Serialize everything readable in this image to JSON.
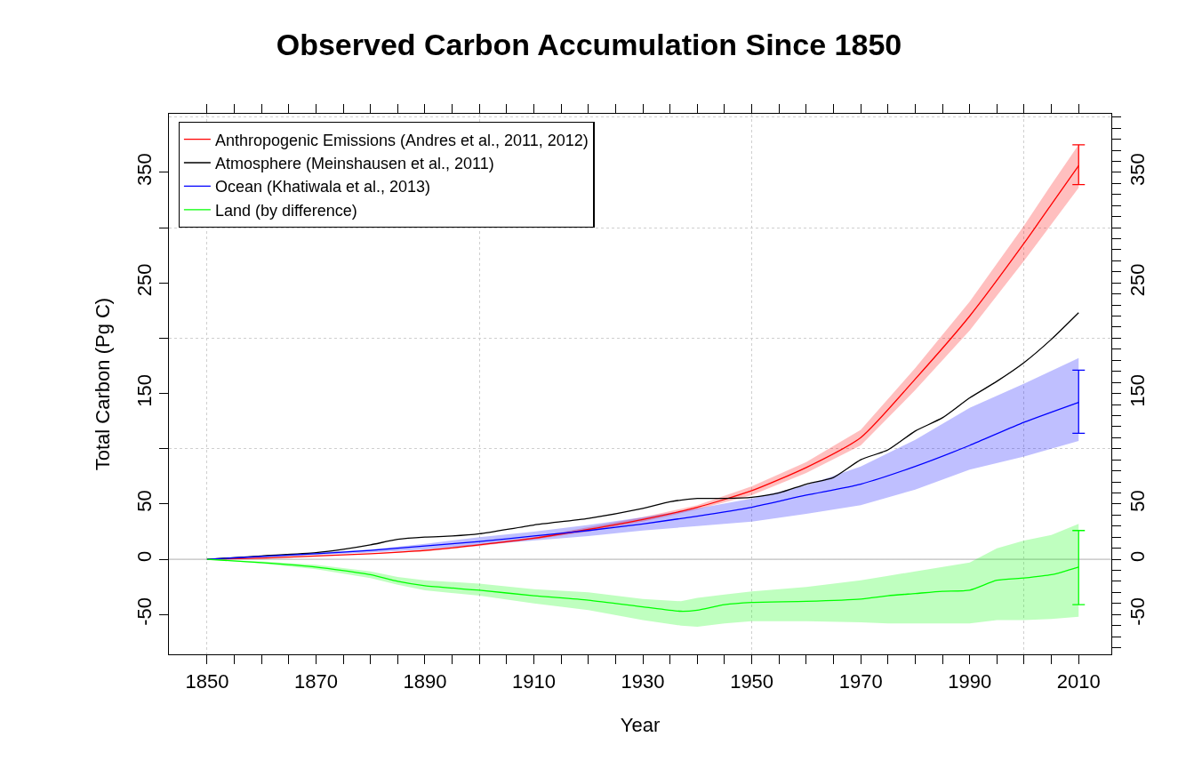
{
  "chart_data": {
    "type": "line",
    "title": "Observed Carbon Accumulation Since 1850",
    "xlabel": "Year",
    "ylabel": "Total Carbon (Pg C)",
    "xlim": [
      1843,
      2016
    ],
    "ylim": [
      -86,
      403
    ],
    "y2lim": [
      -86,
      403
    ],
    "xticks": [
      1850,
      {
        "value": 1855,
        "label": null
      },
      {
        "value": 1860,
        "label": null
      },
      {
        "value": 1865,
        "label": null
      },
      1870,
      {
        "value": 1875,
        "label": null
      },
      {
        "value": 1880,
        "label": null
      },
      {
        "value": 1885,
        "label": null
      },
      1890,
      {
        "value": 1895,
        "label": null
      },
      {
        "value": 1900,
        "label": null
      },
      {
        "value": 1905,
        "label": null
      },
      1910,
      {
        "value": 1915,
        "label": null
      },
      {
        "value": 1920,
        "label": null
      },
      {
        "value": 1925,
        "label": null
      },
      1930,
      {
        "value": 1935,
        "label": null
      },
      {
        "value": 1940,
        "label": null
      },
      {
        "value": 1945,
        "label": null
      },
      1950,
      {
        "value": 1955,
        "label": null
      },
      {
        "value": 1960,
        "label": null
      },
      {
        "value": 1965,
        "label": null
      },
      1970,
      {
        "value": 1975,
        "label": null
      },
      {
        "value": 1980,
        "label": null
      },
      {
        "value": 1985,
        "label": null
      },
      1990,
      {
        "value": 1995,
        "label": null
      },
      {
        "value": 2000,
        "label": null
      },
      {
        "value": 2005,
        "label": null
      },
      2010
    ],
    "yticks": [
      -50,
      0,
      50,
      {
        "value": 100,
        "label": null
      },
      150,
      {
        "value": 200,
        "label": null
      },
      250,
      {
        "value": 300,
        "label": null
      },
      350
    ],
    "y2ticks": [
      {
        "value": -80,
        "label": null
      },
      {
        "value": -70,
        "label": null
      },
      {
        "value": -60,
        "label": null
      },
      -50,
      {
        "value": -40,
        "label": null
      },
      {
        "value": -30,
        "label": null
      },
      {
        "value": -20,
        "label": null
      },
      {
        "value": -10,
        "label": null
      },
      0,
      {
        "value": 10,
        "label": null
      },
      {
        "value": 20,
        "label": null
      },
      {
        "value": 30,
        "label": null
      },
      {
        "value": 40,
        "label": null
      },
      50,
      {
        "value": 60,
        "label": null
      },
      {
        "value": 70,
        "label": null
      },
      {
        "value": 80,
        "label": null
      },
      {
        "value": 90,
        "label": null
      },
      {
        "value": 100,
        "label": null
      },
      {
        "value": 110,
        "label": null
      },
      {
        "value": 120,
        "label": null
      },
      {
        "value": 130,
        "label": null
      },
      {
        "value": 140,
        "label": null
      },
      150,
      {
        "value": 160,
        "label": null
      },
      {
        "value": 170,
        "label": null
      },
      {
        "value": 180,
        "label": null
      },
      {
        "value": 190,
        "label": null
      },
      {
        "value": 200,
        "label": null
      },
      {
        "value": 210,
        "label": null
      },
      {
        "value": 220,
        "label": null
      },
      {
        "value": 230,
        "label": null
      },
      {
        "value": 240,
        "label": null
      },
      250,
      {
        "value": 260,
        "label": null
      },
      {
        "value": 270,
        "label": null
      },
      {
        "value": 280,
        "label": null
      },
      {
        "value": 290,
        "label": null
      },
      {
        "value": 300,
        "label": null
      },
      {
        "value": 310,
        "label": null
      },
      {
        "value": 320,
        "label": null
      },
      {
        "value": 330,
        "label": null
      },
      {
        "value": 340,
        "label": null
      },
      350,
      {
        "value": 360,
        "label": null
      },
      {
        "value": 370,
        "label": null
      },
      {
        "value": 380,
        "label": null
      },
      {
        "value": 390,
        "label": null
      },
      {
        "value": 400,
        "label": null
      }
    ],
    "grid": true,
    "legend": "top left",
    "marker": "none",
    "line_style": "solid",
    "ref_lines": [
      {
        "axis": "y",
        "value": 0,
        "color": "#bebebe"
      }
    ],
    "series": [
      {
        "name": "Anthropogenic Emissions (Andres et al., 2011, 2012)",
        "color": "#ff0000",
        "x": [
          1850,
          1860,
          1870,
          1880,
          1890,
          1900,
          1910,
          1920,
          1930,
          1940,
          1950,
          1960,
          1970,
          1980,
          1990,
          2000,
          2005,
          2010
        ],
        "values": [
          0,
          1,
          3,
          5,
          8,
          13,
          19,
          27,
          36,
          47,
          62,
          83,
          110,
          163,
          220,
          286,
          321,
          356
        ],
        "lower": [
          0,
          1,
          3,
          5,
          7,
          12,
          18,
          25,
          34,
          45,
          58,
          78,
          103,
          153,
          207,
          270,
          303,
          336
        ],
        "upper": [
          0,
          1,
          3,
          5,
          9,
          14,
          20,
          29,
          38,
          49,
          66,
          88,
          117,
          173,
          233,
          302,
          339,
          375
        ],
        "errors": [
          null,
          null,
          null,
          null,
          null,
          null,
          null,
          null,
          null,
          null,
          null,
          null,
          null,
          null,
          null,
          null,
          null,
          [
            339,
            375
          ]
        ]
      },
      {
        "name": "Atmosphere (Meinshausen et al., 2011)",
        "color": "#000000",
        "x": [
          1850,
          1860,
          1870,
          1875,
          1880,
          1885,
          1890,
          1895,
          1900,
          1910,
          1920,
          1930,
          1935,
          1940,
          1945,
          1950,
          1955,
          1960,
          1965,
          1970,
          1975,
          1980,
          1985,
          1990,
          1995,
          2000,
          2005,
          2010
        ],
        "values": [
          0,
          3,
          6,
          9,
          13,
          18,
          20,
          21,
          23,
          31,
          37,
          46,
          52,
          55,
          55,
          56,
          60,
          68,
          74,
          90,
          99,
          116,
          128,
          146,
          161,
          178,
          199,
          223
        ]
      },
      {
        "name": "Ocean (Khatiwala et al., 2013)",
        "color": "#0000ff",
        "x": [
          1850,
          1870,
          1880,
          1890,
          1900,
          1910,
          1920,
          1930,
          1940,
          1950,
          1960,
          1970,
          1980,
          1990,
          2000,
          2010
        ],
        "values": [
          0,
          5,
          8,
          12,
          16,
          21,
          26,
          32,
          39,
          47,
          58,
          68,
          84,
          103,
          124,
          142
        ],
        "lower": [
          0,
          4,
          6,
          9,
          13,
          17,
          21,
          26,
          30,
          34,
          41,
          49,
          63,
          81,
          93,
          107
        ],
        "upper": [
          0,
          6,
          9,
          14,
          20,
          25,
          31,
          38,
          46,
          55,
          67,
          84,
          108,
          137,
          159,
          182
        ],
        "errors": [
          null,
          null,
          null,
          null,
          null,
          null,
          null,
          null,
          null,
          null,
          null,
          null,
          null,
          null,
          null,
          [
            114,
            171
          ]
        ]
      },
      {
        "name": "Land (by difference)",
        "color": "#00ff00",
        "x": [
          1850,
          1860,
          1870,
          1880,
          1885,
          1890,
          1900,
          1910,
          1920,
          1930,
          1937,
          1940,
          1945,
          1950,
          1960,
          1970,
          1975,
          1980,
          1985,
          1990,
          1995,
          2000,
          2005,
          2010
        ],
        "values": [
          0,
          -3,
          -7,
          -14,
          -20,
          -24,
          -28,
          -33,
          -37,
          -43,
          -47,
          -46,
          -41,
          -39,
          -38,
          -36,
          -33,
          -31,
          -29,
          -28,
          -19,
          -17,
          -14,
          -7
        ],
        "lower": [
          0,
          -4,
          -9,
          -17,
          -23,
          -28,
          -33,
          -40,
          -46,
          -55,
          -60,
          -61,
          -58,
          -56,
          -56,
          -57,
          -58,
          -58,
          -58,
          -58,
          -55,
          -55,
          -54,
          -52
        ],
        "upper": [
          0,
          -2,
          -5,
          -11,
          -16,
          -19,
          -22,
          -27,
          -30,
          -36,
          -38,
          -35,
          -32,
          -29,
          -25,
          -19,
          -15,
          -11,
          -7,
          -3,
          10,
          17,
          22,
          32
        ],
        "errors": [
          null,
          null,
          null,
          null,
          null,
          null,
          null,
          null,
          null,
          null,
          null,
          null,
          null,
          null,
          null,
          null,
          null,
          null,
          null,
          null,
          null,
          null,
          null,
          [
            -41,
            26
          ]
        ]
      }
    ]
  }
}
